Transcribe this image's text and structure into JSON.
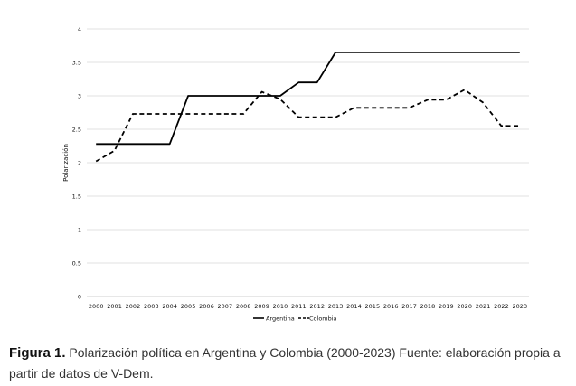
{
  "chart_data": {
    "type": "line",
    "ylabel": "Polarización",
    "ylim": [
      0,
      4
    ],
    "yticks": [
      "0",
      "0.5",
      "1",
      "1.5",
      "2",
      "2.5",
      "3",
      "3.5",
      "4"
    ],
    "ytick_values": [
      0,
      0.5,
      1,
      1.5,
      2,
      2.5,
      3,
      3.5,
      4
    ],
    "grid": true,
    "legend_position": "bottom",
    "categories": [
      "2000",
      "2001",
      "2002",
      "2003",
      "2004",
      "2005",
      "2006",
      "2007",
      "2008",
      "2009",
      "2010",
      "2011",
      "2012",
      "2013",
      "2014",
      "2015",
      "2016",
      "2017",
      "2018",
      "2019",
      "2020",
      "2021",
      "2022",
      "2023"
    ],
    "series": [
      {
        "name": "Argentina",
        "style": "solid",
        "values": [
          2.28,
          2.28,
          2.28,
          2.28,
          2.28,
          3.0,
          3.0,
          3.0,
          3.0,
          3.0,
          3.0,
          3.2,
          3.2,
          3.65,
          3.65,
          3.65,
          3.65,
          3.65,
          3.65,
          3.65,
          3.65,
          3.65,
          3.65,
          3.65
        ]
      },
      {
        "name": "Colombia",
        "style": "dashed",
        "values": [
          2.02,
          2.18,
          2.73,
          2.73,
          2.73,
          2.73,
          2.73,
          2.73,
          2.73,
          3.06,
          2.95,
          2.68,
          2.68,
          2.68,
          2.82,
          2.82,
          2.82,
          2.82,
          2.94,
          2.94,
          3.09,
          2.9,
          2.55,
          2.55
        ]
      }
    ]
  },
  "caption": {
    "label": "Figura 1.",
    "text": "Polarización política en Argentina y Colombia (2000-2023) Fuente: elaboración propia a partir de datos de V-Dem."
  },
  "colors": {
    "line": "#000000",
    "grid": "#d9d9d9",
    "axis": "#bfbfbf"
  }
}
